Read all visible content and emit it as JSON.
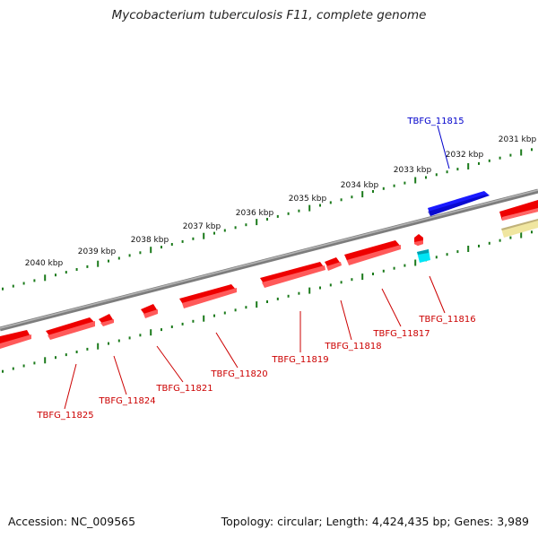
{
  "title": "Mycobacterium tuberculosis F11, complete genome",
  "footer": {
    "accession": "Accession: NC_009565",
    "summary": "Topology: circular; Length: 4,424,435 bp; Genes: 3,989"
  },
  "colors": {
    "forward_gene": "#ee0000",
    "reverse_gene": "#0000ee",
    "feature_cyan": "#00e0f0",
    "feature_yellow": "#f0e6a0",
    "backbone": "#808080",
    "ticks": "#1a7a1a",
    "label_forward": "#cc0000",
    "label_reverse": "#0000cc"
  },
  "ticks": {
    "outer_labels": [
      "2031 kbp",
      "2032 kbp",
      "2033 kbp",
      "2034 kbp",
      "2035 kbp",
      "2036 kbp",
      "2037 kbp",
      "2038 kbp",
      "2039 kbp",
      "2040 kbp"
    ]
  },
  "genes": [
    {
      "label": "TBFG_11815",
      "strand": "reverse"
    },
    {
      "label": "TBFG_11816",
      "strand": "forward"
    },
    {
      "label": "TBFG_11817",
      "strand": "forward"
    },
    {
      "label": "TBFG_11818",
      "strand": "forward"
    },
    {
      "label": "TBFG_11819",
      "strand": "forward"
    },
    {
      "label": "TBFG_11820",
      "strand": "forward"
    },
    {
      "label": "TBFG_11821",
      "strand": "forward"
    },
    {
      "label": "TBFG_11824",
      "strand": "forward"
    },
    {
      "label": "TBFG_11825",
      "strand": "forward"
    }
  ]
}
